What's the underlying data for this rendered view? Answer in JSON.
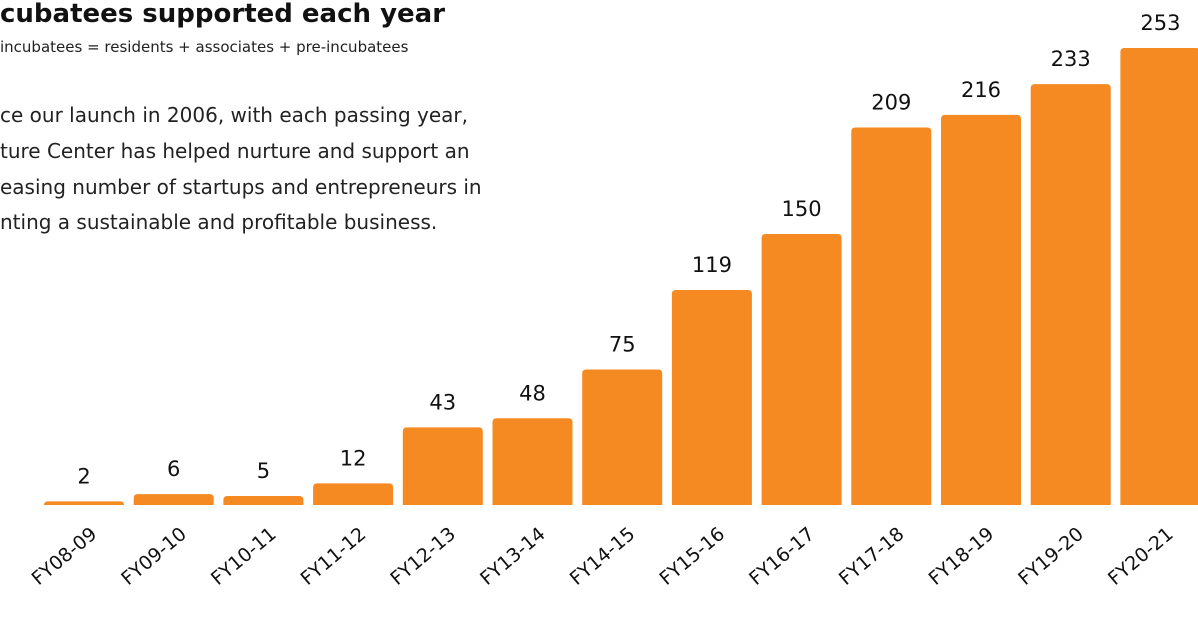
{
  "chart_data": {
    "type": "bar",
    "title": "cubatees supported each year",
    "subtitle": "incubatees = residents + associates + pre-incubatees",
    "description": [
      "ce our launch in 2006, with each passing year,",
      "ture Center has helped nurture and support an",
      "easing number of startups and entrepreneurs in",
      "nting a sustainable and profitable business."
    ],
    "categories": [
      "FY08-09",
      "FY09-10",
      "FY10-11",
      "FY11-12",
      "FY12-13",
      "FY13-14",
      "FY14-15",
      "FY15-16",
      "FY16-17",
      "FY17-18",
      "FY18-19",
      "FY19-20",
      "FY20-21"
    ],
    "values": [
      2,
      6,
      5,
      12,
      43,
      48,
      75,
      119,
      150,
      209,
      216,
      233,
      253
    ],
    "color": "#f58a23"
  }
}
